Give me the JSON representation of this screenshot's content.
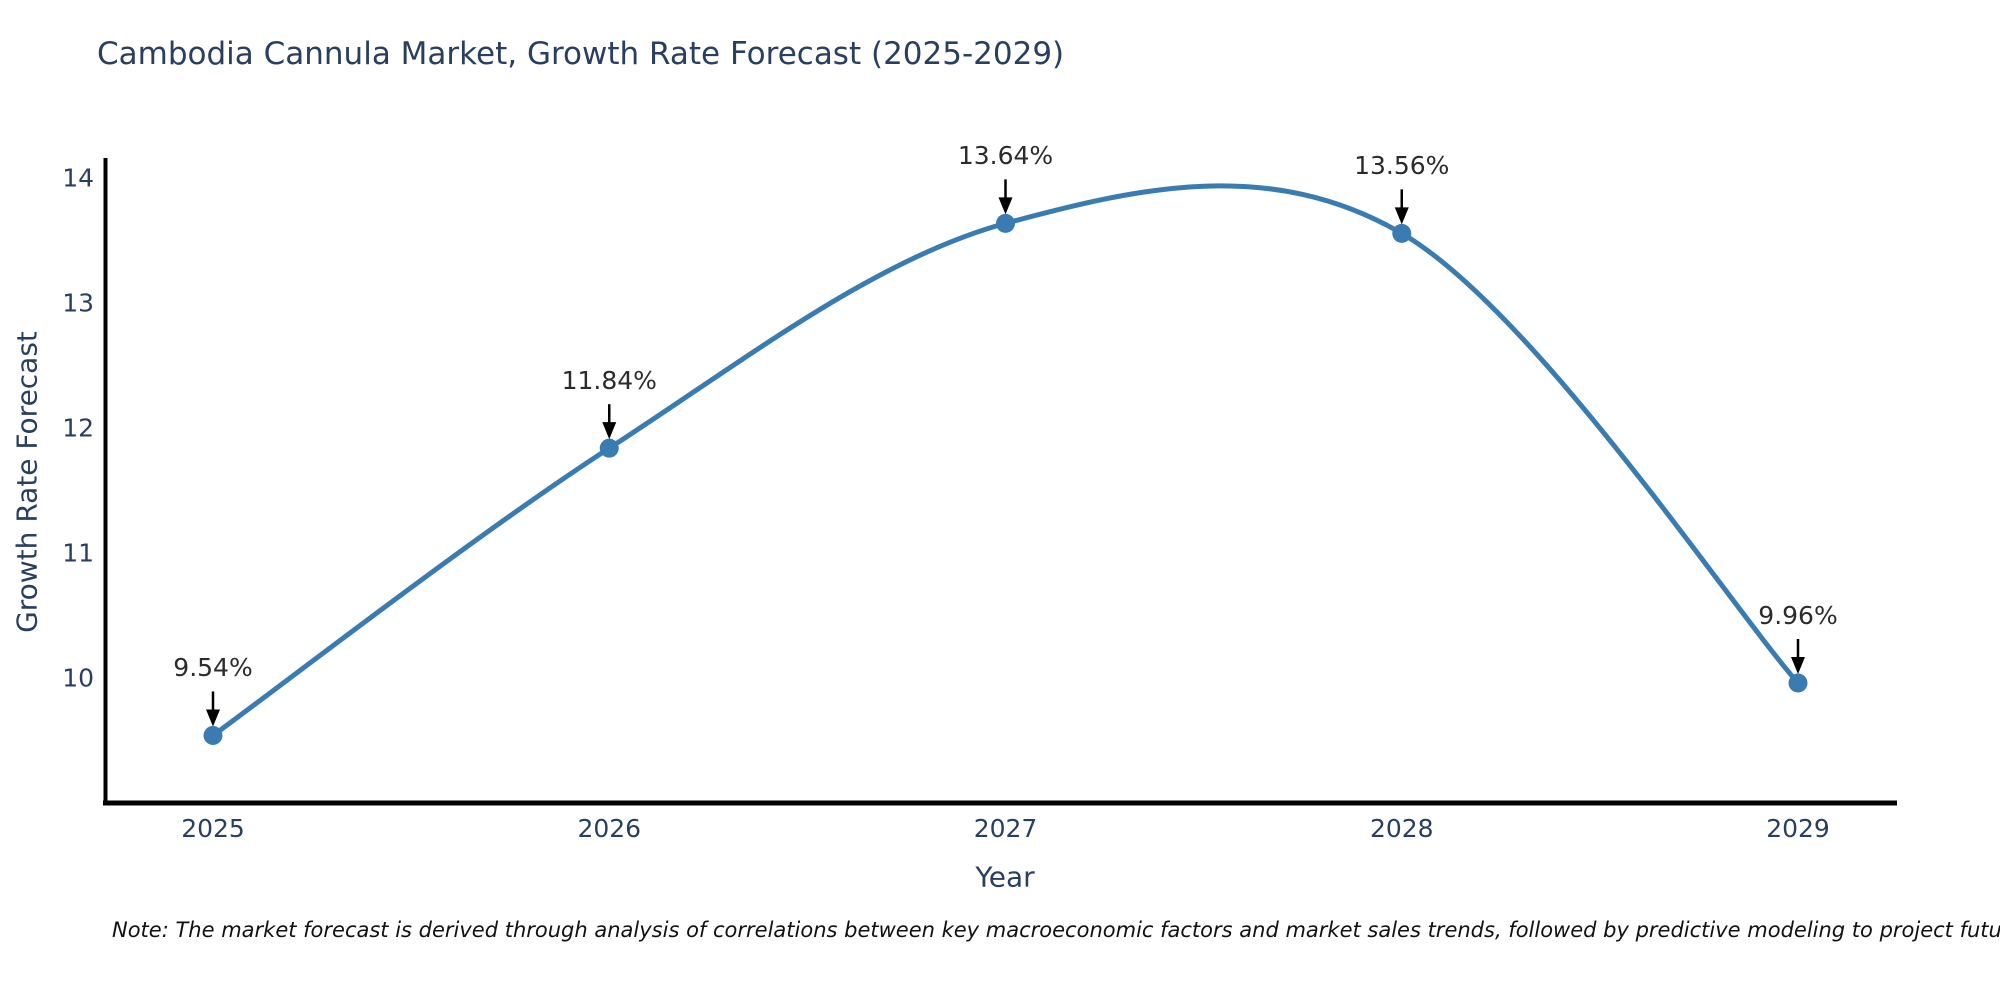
{
  "chart_data": {
    "type": "line",
    "title": "Cambodia Cannula Market, Growth Rate Forecast (2025-2029)",
    "xlabel": "Year",
    "ylabel": "Growth Rate Forecast",
    "categories": [
      "2025",
      "2026",
      "2027",
      "2028",
      "2029"
    ],
    "values": [
      9.54,
      11.84,
      13.64,
      13.56,
      9.96
    ],
    "point_labels": [
      "9.54%",
      "11.84%",
      "13.64%",
      "13.56%",
      "9.96%"
    ],
    "y_ticks": [
      10,
      11,
      12,
      13,
      14
    ],
    "ylim": [
      9.0,
      14.15
    ],
    "line_shape": "spline",
    "grid": false,
    "legend": "none",
    "line_color": "#3a7cb1",
    "marker_color": "#3a7cb1",
    "axis_color": "#000000",
    "annotation_arrow_color": "#000000",
    "note": "Note: The market forecast is derived through analysis of correlations between key macroeconomic factors and market sales trends, followed by predictive modeling to project future sales"
  }
}
